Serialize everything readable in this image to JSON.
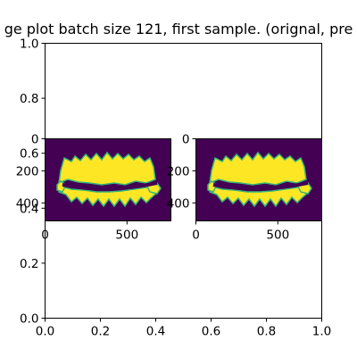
{
  "figure": {
    "title": "ge plot batch size 121, first sample. (orignal, pre"
  },
  "colors": {
    "background": "#440154",
    "mask": "#fde725",
    "edge": "#35b779"
  },
  "chart_data": [
    {
      "type": "line",
      "role": "outer empty axes",
      "series": [],
      "xlim": [
        0.0,
        1.0
      ],
      "ylim": [
        0.0,
        1.0
      ],
      "x_ticks": [
        "0.0",
        "0.2",
        "0.4",
        "0.6",
        "0.8",
        "1.0"
      ],
      "y_ticks": [
        "0.0",
        "0.2",
        "0.4",
        "0.6",
        "0.8",
        "1.0"
      ],
      "grid": false
    },
    {
      "type": "heatmap",
      "role": "image panel 1 (original)",
      "colormap": "viridis",
      "content": "dental segmentation mask",
      "x_ticks": [
        "0",
        "500"
      ],
      "y_ticks": [
        "0",
        "200",
        "400"
      ],
      "xlim": [
        0,
        768
      ],
      "ylim": [
        512,
        0
      ]
    },
    {
      "type": "heatmap",
      "role": "image panel 2 (prediction)",
      "colormap": "viridis",
      "content": "dental segmentation mask",
      "x_ticks": [
        "0",
        "500"
      ],
      "y_ticks": [
        "0",
        "200",
        "400"
      ],
      "xlim": [
        0,
        768
      ],
      "ylim": [
        512,
        0
      ]
    }
  ]
}
